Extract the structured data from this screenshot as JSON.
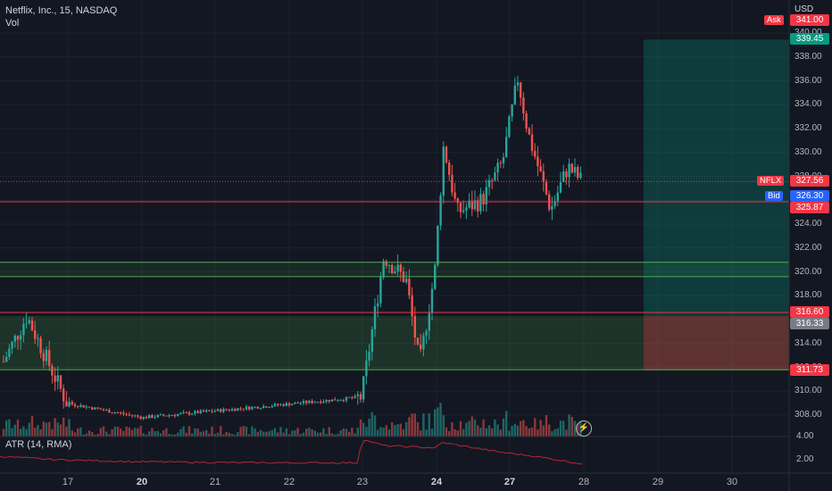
{
  "header": {
    "symbol_line": "Netflix, Inc., 15, NASDAQ",
    "vol_label": "Vol",
    "currency": "USD"
  },
  "atr": {
    "label": "ATR (14, RMA)",
    "axis_labels": [
      "4.00",
      "2.00"
    ]
  },
  "price_axis": {
    "labels": [
      "340.00",
      "338.00",
      "336.00",
      "334.00",
      "332.00",
      "330.00",
      "328.00",
      "326.00",
      "324.00",
      "322.00",
      "320.00",
      "318.00",
      "316.00",
      "314.00",
      "312.00",
      "310.00",
      "308.00"
    ]
  },
  "time_axis": {
    "labels": [
      {
        "text": "17",
        "bold": false
      },
      {
        "text": "20",
        "bold": true
      },
      {
        "text": "21",
        "bold": false
      },
      {
        "text": "22",
        "bold": false
      },
      {
        "text": "23",
        "bold": false
      },
      {
        "text": "24",
        "bold": true
      },
      {
        "text": "27",
        "bold": true
      },
      {
        "text": "28",
        "bold": false
      },
      {
        "text": "29",
        "bold": false
      },
      {
        "text": "30",
        "bold": false
      }
    ]
  },
  "tags": {
    "ask_label": "Ask",
    "ask_value": "341.00",
    "target_value": "339.45",
    "nflx_label": "NFLX",
    "last_value": "327.56",
    "bid_label": "Bid",
    "bid_value": "326.30",
    "red_line_value": "325.87",
    "stop_top_value": "316.60",
    "stop_zone_value": "316.33",
    "stop_value": "311.73"
  },
  "colors": {
    "background": "#131722",
    "up": "#26a69a",
    "down": "#ef5350",
    "grid": "#1e222d",
    "atr_line": "#b22833"
  },
  "chart_data": {
    "type": "candlestick",
    "title": "Netflix, Inc., 15, NASDAQ",
    "xlabel": "",
    "ylabel": "USD",
    "ylim": [
      307,
      341
    ],
    "x_ticks": [
      "17",
      "20",
      "21",
      "22",
      "23",
      "24",
      "27",
      "28",
      "29",
      "30"
    ],
    "key_points": [
      {
        "x": "16",
        "close": 312.5
      },
      {
        "x": "16",
        "close": 316.3
      },
      {
        "x": "17",
        "close": 309.0
      },
      {
        "x": "20",
        "close": 307.8
      },
      {
        "x": "23",
        "close": 309.5
      },
      {
        "x": "23",
        "close": 321.3
      },
      {
        "x": "23",
        "close": 319.3
      },
      {
        "x": "23",
        "close": 312.2
      },
      {
        "x": "24",
        "close": 320.0
      },
      {
        "x": "24",
        "close": 330.6
      },
      {
        "x": "24",
        "close": 325.0
      },
      {
        "x": "24",
        "close": 326.0
      },
      {
        "x": "27",
        "close": 329.2
      },
      {
        "x": "27",
        "close": 336.2
      },
      {
        "x": "27",
        "close": 331.5
      },
      {
        "x": "27",
        "close": 325.2
      },
      {
        "x": "27",
        "close": 328.8
      },
      {
        "x": "27",
        "close": 327.56
      }
    ],
    "horizontal_levels": [
      325.87,
      320.8,
      319.6,
      316.6,
      311.8
    ],
    "demand_zone": [
      311.8,
      316.3
    ],
    "position": {
      "entry": 316.33,
      "target": 339.45,
      "stop": 311.73
    },
    "atr_range": [
      1.6,
      4.0
    ]
  }
}
